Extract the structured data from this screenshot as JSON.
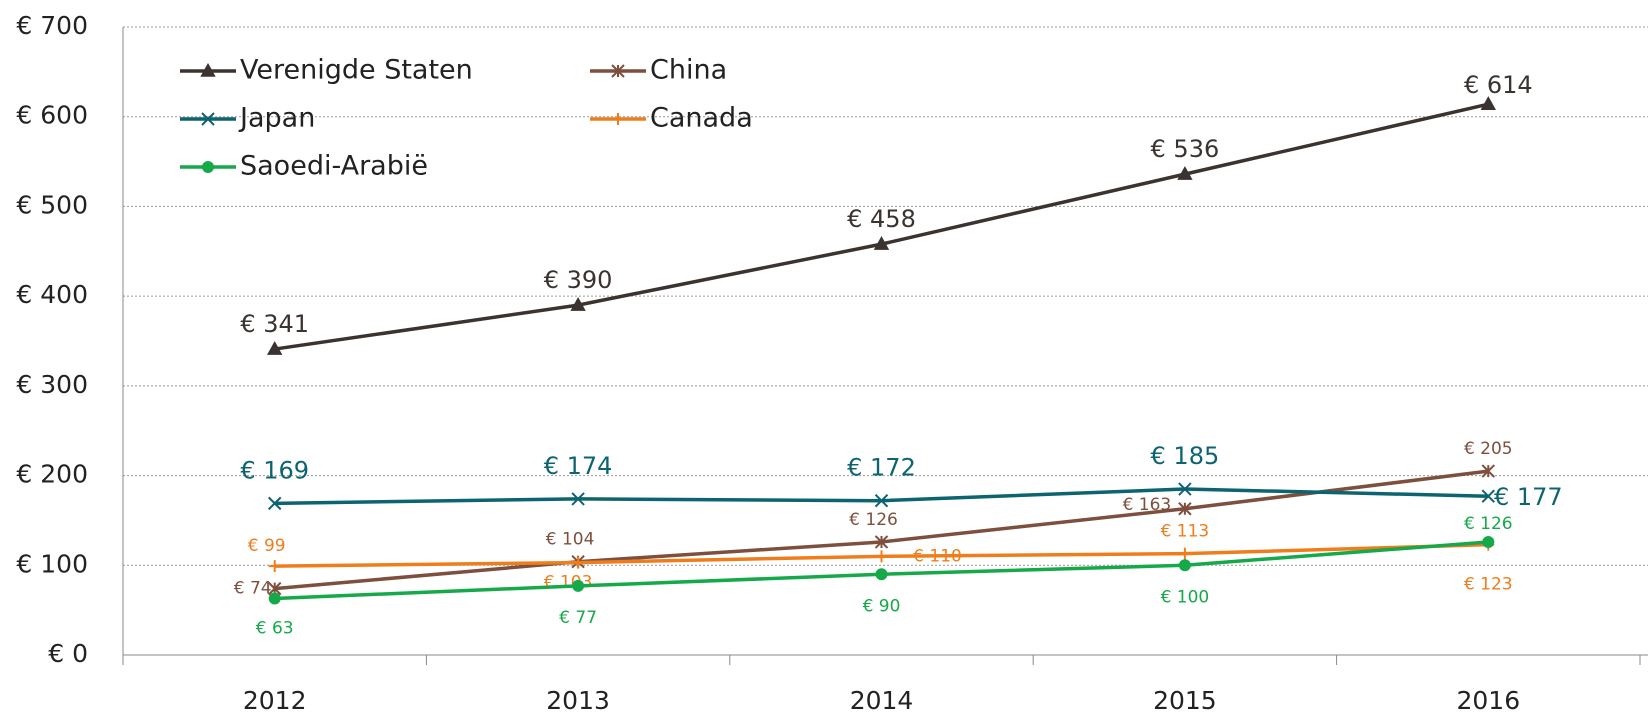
{
  "chart_data": {
    "type": "line",
    "categories": [
      "2012",
      "2013",
      "2014",
      "2015",
      "2016"
    ],
    "series": [
      {
        "name": "Verenigde Staten",
        "color": "#3b3330",
        "marker": "triangle",
        "values": [
          341,
          390,
          458,
          536,
          614
        ],
        "value_labels": [
          "€ 341",
          "€ 390",
          "€ 458",
          "€ 536",
          "€ 614"
        ]
      },
      {
        "name": "China",
        "color": "#7e4f3d",
        "marker": "star",
        "values": [
          74,
          104,
          126,
          163,
          205
        ],
        "value_labels": [
          "€ 74",
          "€ 104",
          "€ 126",
          "€ 163",
          "€ 205"
        ]
      },
      {
        "name": "Japan",
        "color": "#0c6470",
        "marker": "x",
        "values": [
          169,
          174,
          172,
          185,
          177
        ],
        "value_labels": [
          "€ 169",
          "€ 174",
          "€ 172",
          "€ 185",
          "€ 177"
        ]
      },
      {
        "name": "Canada",
        "color": "#f07d1c",
        "marker": "plus",
        "values": [
          99,
          103,
          110,
          113,
          123
        ],
        "value_labels": [
          "€ 99",
          "€ 103",
          "€ 110",
          "€ 113",
          "€ 123"
        ]
      },
      {
        "name": "Saoedi-Arabië",
        "color": "#16a94a",
        "marker": "circle",
        "values": [
          63,
          77,
          90,
          100,
          126
        ],
        "value_labels": [
          "€ 63",
          "€ 77",
          "€ 90",
          "€ 100",
          "€ 126"
        ]
      }
    ],
    "ylim": [
      0,
      700
    ],
    "yticks": [
      {
        "value": 0,
        "label": "€ 0"
      },
      {
        "value": 100,
        "label": "€ 100"
      },
      {
        "value": 200,
        "label": "€ 200"
      },
      {
        "value": 300,
        "label": "€ 300"
      },
      {
        "value": 400,
        "label": "€ 400"
      },
      {
        "value": 500,
        "label": "€ 500"
      },
      {
        "value": 600,
        "label": "€ 600"
      },
      {
        "value": 700,
        "label": "€ 700"
      }
    ],
    "grid": true
  }
}
